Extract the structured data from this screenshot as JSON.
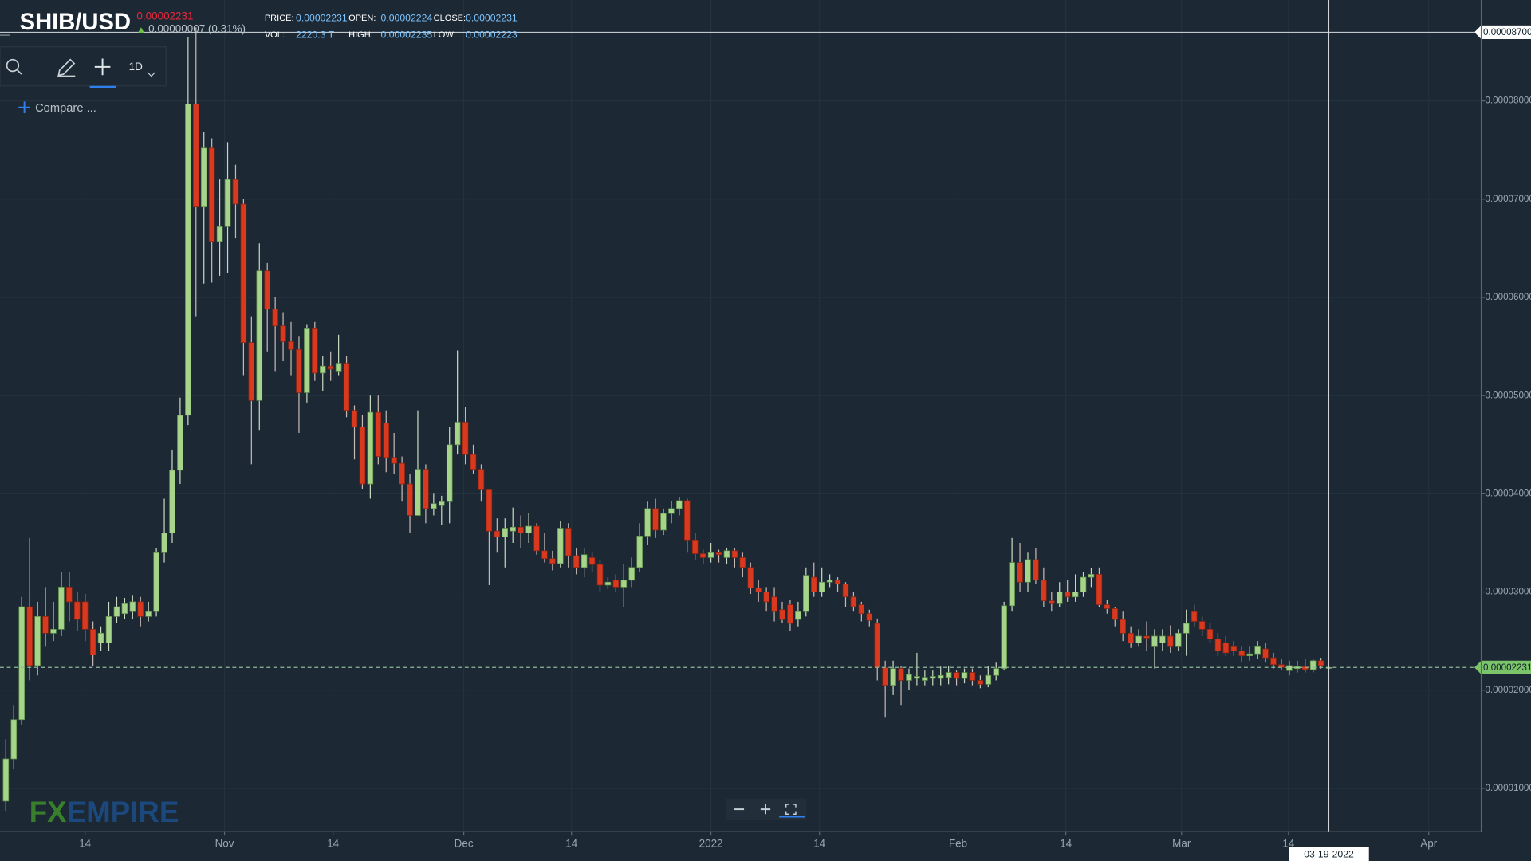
{
  "header": {
    "symbol": "SHIB/USD",
    "price": "0.00002231",
    "change": "0.00000007 (0.31%)",
    "fields": [
      {
        "label": "PRICE:",
        "value": "0.00002231"
      },
      {
        "label": "OPEN:",
        "value": "0.00002224"
      },
      {
        "label": "CLOSE:",
        "value": "0.00002231"
      },
      {
        "label": "VOL:",
        "value": "2220.3 T"
      },
      {
        "label": "HIGH:",
        "value": "0.00002235"
      },
      {
        "label": "LOW:",
        "value": "0.00002223"
      }
    ]
  },
  "toolbar": {
    "interval": "1D",
    "compare": "Compare ..."
  },
  "watermark": [
    "FX",
    "EMPIRE"
  ],
  "chart_data": {
    "type": "candlestick",
    "up_color": "#a6d48b",
    "down_color": "#d9391f",
    "grid": true,
    "ylim": [
      5.59e-06,
      9.028e-05
    ],
    "yticks": [
      {
        "value": 1e-05,
        "label": "0.00001000"
      },
      {
        "value": 2e-05,
        "label": "0.00002000"
      },
      {
        "value": 3e-05,
        "label": "0.00003000"
      },
      {
        "value": 4e-05,
        "label": "0.00004000"
      },
      {
        "value": 5e-05,
        "label": "0.00005000"
      },
      {
        "value": 6e-05,
        "label": "0.00006000"
      },
      {
        "value": 7e-05,
        "label": "0.00007000"
      },
      {
        "value": 8e-05,
        "label": "0.00008000"
      }
    ],
    "xticks": [
      {
        "value": 10,
        "label": "14"
      },
      {
        "value": 27.6,
        "label": "Nov"
      },
      {
        "value": 41.3,
        "label": "14"
      },
      {
        "value": 57.8,
        "label": "Dec"
      },
      {
        "value": 71.4,
        "label": "14"
      },
      {
        "value": 89,
        "label": "2022"
      },
      {
        "value": 102.7,
        "label": "14"
      },
      {
        "value": 120.2,
        "label": "Feb"
      },
      {
        "value": 133.8,
        "label": "14"
      },
      {
        "value": 148.4,
        "label": "Mar"
      },
      {
        "value": 161.9,
        "label": "14"
      },
      {
        "value": 179.6,
        "label": "Apr"
      }
    ],
    "last_price": 2.231e-05,
    "crosshair": {
      "category": 167,
      "value": 8.7e-05,
      "label": "0.00008700"
    },
    "categories": [
      null,
      null,
      null,
      null,
      null,
      null,
      null,
      null,
      null,
      null,
      null,
      null,
      null,
      null,
      null,
      null,
      null,
      null,
      null,
      null,
      null,
      null,
      null,
      null,
      null,
      null,
      null,
      null,
      null,
      null,
      null,
      null,
      null,
      null,
      null,
      null,
      null,
      null,
      null,
      null,
      null,
      null,
      null,
      null,
      null,
      null,
      null,
      null,
      null,
      null,
      null,
      null,
      null,
      null,
      null,
      null,
      null,
      null,
      null,
      null,
      null,
      null,
      null,
      null,
      null,
      null,
      null,
      null,
      null,
      null,
      null,
      null,
      null,
      null,
      null,
      null,
      null,
      null,
      null,
      null,
      null,
      null,
      null,
      null,
      null,
      null,
      null,
      null,
      null,
      null,
      null,
      null,
      null,
      null,
      null,
      null,
      null,
      null,
      null,
      null,
      null,
      null,
      null,
      null,
      null,
      null,
      null,
      null,
      null,
      null,
      null,
      null,
      null,
      null,
      null,
      null,
      null,
      null,
      null,
      null,
      null,
      null,
      null,
      null,
      null,
      null,
      null,
      null,
      null,
      null,
      null,
      null,
      null,
      null,
      null,
      null,
      null,
      null,
      null,
      null,
      null,
      null,
      null,
      null,
      null,
      null,
      null,
      null,
      null,
      null,
      null,
      null,
      null,
      null,
      null,
      null,
      null,
      null,
      null,
      null,
      null,
      null,
      null,
      null,
      null,
      null,
      null,
      "03-19-2022"
    ],
    "open": [
      8.7e-06,
      1.3e-05,
      1.7e-05,
      2.85e-05,
      2.25e-05,
      2.75e-05,
      2.58e-05,
      2.62e-05,
      3.05e-05,
      2.9e-05,
      2.9e-05,
      2.62e-05,
      2.48e-05,
      2.48e-05,
      2.75e-05,
      2.78e-05,
      2.8e-05,
      2.9e-05,
      2.75e-05,
      2.8e-05,
      3.4e-05,
      3.6e-05,
      4.24e-05,
      4.8e-05,
      7.97e-05,
      6.92e-05,
      7.52e-05,
      6.57e-05,
      6.72e-05,
      7.2e-05,
      6.95e-05,
      5.54e-05,
      4.95e-05,
      6.27e-05,
      5.88e-05,
      5.71e-05,
      5.55e-05,
      5.47e-05,
      5.03e-05,
      5.68e-05,
      5.23e-05,
      5.3e-05,
      5.25e-05,
      5.33e-05,
      4.85e-05,
      4.68e-05,
      4.1e-05,
      4.83e-05,
      4.72e-05,
      4.37e-05,
      4.31e-05,
      4.1e-05,
      3.78e-05,
      4.25e-05,
      3.85e-05,
      3.88e-05,
      3.92e-05,
      4.5e-05,
      4.73e-05,
      4.4e-05,
      4.25e-05,
      4.04e-05,
      3.62e-05,
      3.56e-05,
      3.62e-05,
      3.66e-05,
      3.6e-05,
      3.67e-05,
      3.42e-05,
      3.34e-05,
      3.29e-05,
      3.65e-05,
      3.37e-05,
      3.25e-05,
      3.35e-05,
      3.28e-05,
      3.07e-05,
      3.12e-05,
      3.05e-05,
      3.12e-05,
      3.25e-05,
      3.57e-05,
      3.85e-05,
      3.63e-05,
      3.8e-05,
      3.85e-05,
      3.93e-05,
      3.53e-05,
      3.39e-05,
      3.35e-05,
      3.4e-05,
      3.35e-05,
      3.42e-05,
      3.35e-05,
      3.25e-05,
      3.04e-05,
      3e-05,
      2.95e-05,
      2.82e-05,
      2.87e-05,
      2.72e-05,
      2.8e-05,
      3.15e-05,
      3e-05,
      3.1e-05,
      3.12e-05,
      3.08e-05,
      2.95e-05,
      2.87e-05,
      2.78e-05,
      2.68e-05,
      2.23e-05,
      2.05e-05,
      2.22e-05,
      2.1e-05,
      2.12e-05,
      2.1e-05,
      2.12e-05,
      2.12e-05,
      2.13e-05,
      2.18e-05,
      2.12e-05,
      2.18e-05,
      2.1e-05,
      2.06e-05,
      2.15e-05,
      2.22e-05,
      2.86e-05,
      3.3e-05,
      3.1e-05,
      3.33e-05,
      3.12e-05,
      2.91e-05,
      2.88e-05,
      3e-05,
      2.95e-05,
      3e-05,
      3.15e-05,
      3.18e-05,
      2.87e-05,
      2.83e-05,
      2.72e-05,
      2.58e-05,
      2.48e-05,
      2.55e-05,
      2.45e-05,
      2.48e-05,
      2.55e-05,
      2.45e-05,
      2.58e-05,
      2.8e-05,
      2.7e-05,
      2.62e-05,
      2.52e-05,
      2.48e-05,
      2.45e-05,
      2.4e-05,
      2.35e-05,
      2.37e-05,
      2.42e-05,
      2.33e-05,
      2.26e-05,
      2.2e-05,
      2.22e-05,
      2.24e-05,
      2.21e-05,
      2.3e-05,
      2.224e-05
    ],
    "high": [
      1.5e-05,
      1.85e-05,
      2.95e-05,
      3.55e-05,
      2.9e-05,
      3.05e-05,
      2.9e-05,
      3.2e-05,
      3.2e-05,
      3e-05,
      2.98e-05,
      2.7e-05,
      2.65e-05,
      2.9e-05,
      2.95e-05,
      2.94e-05,
      2.97e-05,
      2.95e-05,
      2.9e-05,
      3.45e-05,
      3.95e-05,
      4.45e-05,
      4.98e-05,
      8.65e-05,
      8.75e-05,
      7.68e-05,
      7.62e-05,
      7.2e-05,
      7.58e-05,
      7.35e-05,
      7e-05,
      5.8e-05,
      6.55e-05,
      6.35e-05,
      6e-05,
      5.85e-05,
      5.75e-05,
      5.6e-05,
      5.72e-05,
      5.75e-05,
      5.4e-05,
      5.45e-05,
      5.62e-05,
      5.4e-05,
      4.9e-05,
      4.8e-05,
      5e-05,
      5e-05,
      4.85e-05,
      4.62e-05,
      4.38e-05,
      4.2e-05,
      4.85e-05,
      4.3e-05,
      4e-05,
      3.98e-05,
      4.68e-05,
      5.46e-05,
      4.88e-05,
      4.5e-05,
      4.3e-05,
      4.05e-05,
      3.75e-05,
      3.75e-05,
      3.86e-05,
      3.78e-05,
      3.8e-05,
      3.7e-05,
      3.6e-05,
      3.42e-05,
      3.72e-05,
      3.7e-05,
      3.45e-05,
      3.45e-05,
      3.4e-05,
      3.32e-05,
      3.15e-05,
      3.18e-05,
      3.28e-05,
      3.35e-05,
      3.7e-05,
      3.92e-05,
      3.95e-05,
      3.85e-05,
      3.93e-05,
      3.97e-05,
      3.95e-05,
      3.6e-05,
      3.43e-05,
      3.5e-05,
      3.43e-05,
      3.45e-05,
      3.45e-05,
      3.4e-05,
      3.3e-05,
      3.12e-05,
      3.05e-05,
      3.05e-05,
      2.9e-05,
      2.92e-05,
      2.9e-05,
      3.25e-05,
      3.3e-05,
      3.25e-05,
      3.18e-05,
      3.15e-05,
      3.1e-05,
      3e-05,
      2.9e-05,
      2.82e-05,
      2.73e-05,
      2.3e-05,
      2.3e-05,
      2.25e-05,
      2.22e-05,
      2.38e-05,
      2.2e-05,
      2.2e-05,
      2.24e-05,
      2.25e-05,
      2.2e-05,
      2.22e-05,
      2.22e-05,
      2.15e-05,
      2.25e-05,
      2.28e-05,
      2.9e-05,
      3.55e-05,
      3.5e-05,
      3.4e-05,
      3.45e-05,
      3.25e-05,
      3e-05,
      3.1e-05,
      3.12e-05,
      3.18e-05,
      3.2e-05,
      3.24e-05,
      3.25e-05,
      2.92e-05,
      2.85e-05,
      2.8e-05,
      2.65e-05,
      2.62e-05,
      2.7e-05,
      2.62e-05,
      2.62e-05,
      2.66e-05,
      2.62e-05,
      2.82e-05,
      2.87e-05,
      2.75e-05,
      2.68e-05,
      2.58e-05,
      2.55e-05,
      2.5e-05,
      2.45e-05,
      2.45e-05,
      2.5e-05,
      2.48e-05,
      2.38e-05,
      2.32e-05,
      2.3e-05,
      2.3e-05,
      2.32e-05,
      2.32e-05,
      2.33e-05,
      2.235e-05
    ],
    "low": [
      7.7e-06,
      1.2e-05,
      1.65e-05,
      2.1e-05,
      2.15e-05,
      2.45e-05,
      2.5e-05,
      2.55e-05,
      2.7e-05,
      2.6e-05,
      2.5e-05,
      2.25e-05,
      2.4e-05,
      2.4e-05,
      2.68e-05,
      2.72e-05,
      2.72e-05,
      2.65e-05,
      2.7e-05,
      2.75e-05,
      3.3e-05,
      3.5e-05,
      4.1e-05,
      4.7e-05,
      5.8e-05,
      6.14e-05,
      6.15e-05,
      6.22e-05,
      6.25e-05,
      6.6e-05,
      5.2e-05,
      4.3e-05,
      4.65e-05,
      5.45e-05,
      5.25e-05,
      5.35e-05,
      5.2e-05,
      4.62e-05,
      4.93e-05,
      5.15e-05,
      5.05e-05,
      5.15e-05,
      5.2e-05,
      4.78e-05,
      4.35e-05,
      4.05e-05,
      3.95e-05,
      4.3e-05,
      4.22e-05,
      4.2e-05,
      3.92e-05,
      3.6e-05,
      3.78e-05,
      3.7e-05,
      3.78e-05,
      3.68e-05,
      3.7e-05,
      4.4e-05,
      4.3e-05,
      4.2e-05,
      3.92e-05,
      3.07e-05,
      3.4e-05,
      3.25e-05,
      3.5e-05,
      3.45e-05,
      3.5e-05,
      3.38e-05,
      3.3e-05,
      3.22e-05,
      3.25e-05,
      3.25e-05,
      3.18e-05,
      3.15e-05,
      3.2e-05,
      3e-05,
      3.03e-05,
      3e-05,
      2.85e-05,
      3.05e-05,
      3.2e-05,
      3.48e-05,
      3.55e-05,
      3.58e-05,
      3.7e-05,
      3.78e-05,
      3.4e-05,
      3.33e-05,
      3.28e-05,
      3.3e-05,
      3.3e-05,
      3.28e-05,
      3.25e-05,
      3.15e-05,
      2.98e-05,
      2.9e-05,
      2.8e-05,
      2.7e-05,
      2.68e-05,
      2.6e-05,
      2.65e-05,
      2.75e-05,
      2.95e-05,
      2.95e-05,
      3.05e-05,
      3e-05,
      2.85e-05,
      2.8e-05,
      2.7e-05,
      2.65e-05,
      2.1e-05,
      1.72e-05,
      1.95e-05,
      1.85e-05,
      2e-05,
      2.05e-05,
      2.05e-05,
      2.05e-05,
      2.05e-05,
      2.06e-05,
      2.05e-05,
      2.07e-05,
      2.05e-05,
      2.02e-05,
      2.03e-05,
      2.1e-05,
      2.2e-05,
      2.8e-05,
      3e-05,
      3e-05,
      3.08e-05,
      2.85e-05,
      2.8e-05,
      2.85e-05,
      2.9e-05,
      2.9e-05,
      2.95e-05,
      3.05e-05,
      2.85e-05,
      2.78e-05,
      2.65e-05,
      2.5e-05,
      2.43e-05,
      2.45e-05,
      2.4e-05,
      2.22e-05,
      2.4e-05,
      2.38e-05,
      2.4e-05,
      2.35e-05,
      2.65e-05,
      2.55e-05,
      2.48e-05,
      2.35e-05,
      2.35e-05,
      2.35e-05,
      2.28e-05,
      2.3e-05,
      2.32e-05,
      2.28e-05,
      2.22e-05,
      2.2e-05,
      2.15e-05,
      2.18e-05,
      2.18e-05,
      2.18e-05,
      2.22e-05,
      2.223e-05
    ],
    "close": [
      1.3e-05,
      1.7e-05,
      2.85e-05,
      2.25e-05,
      2.75e-05,
      2.58e-05,
      2.62e-05,
      3.05e-05,
      2.9e-05,
      2.72e-05,
      2.62e-05,
      2.36e-05,
      2.58e-05,
      2.75e-05,
      2.85e-05,
      2.88e-05,
      2.9e-05,
      2.75e-05,
      2.8e-05,
      3.4e-05,
      3.6e-05,
      4.24e-05,
      4.8e-05,
      7.97e-05,
      6.92e-05,
      7.52e-05,
      6.57e-05,
      6.72e-05,
      7.2e-05,
      6.95e-05,
      5.54e-05,
      4.95e-05,
      6.27e-05,
      5.88e-05,
      5.71e-05,
      5.55e-05,
      5.47e-05,
      5.03e-05,
      5.68e-05,
      5.23e-05,
      5.3e-05,
      5.27e-05,
      5.33e-05,
      4.85e-05,
      4.68e-05,
      4.1e-05,
      4.83e-05,
      4.38e-05,
      4.37e-05,
      4.31e-05,
      4.1e-05,
      3.78e-05,
      4.25e-05,
      3.85e-05,
      3.9e-05,
      3.92e-05,
      4.5e-05,
      4.73e-05,
      4.4e-05,
      4.25e-05,
      4.04e-05,
      3.62e-05,
      3.56e-05,
      3.65e-05,
      3.66e-05,
      3.6e-05,
      3.67e-05,
      3.42e-05,
      3.34e-05,
      3.29e-05,
      3.65e-05,
      3.37e-05,
      3.25e-05,
      3.38e-05,
      3.28e-05,
      3.07e-05,
      3.1e-05,
      3.05e-05,
      3.12e-05,
      3.25e-05,
      3.57e-05,
      3.85e-05,
      3.63e-05,
      3.8e-05,
      3.85e-05,
      3.93e-05,
      3.53e-05,
      3.39e-05,
      3.35e-05,
      3.4e-05,
      3.38e-05,
      3.42e-05,
      3.35e-05,
      3.25e-05,
      3.04e-05,
      3e-05,
      2.9e-05,
      2.8e-05,
      2.72e-05,
      2.68e-05,
      2.8e-05,
      3.17e-05,
      3e-05,
      3.1e-05,
      3.12e-05,
      3.08e-05,
      2.95e-05,
      2.85e-05,
      2.78e-05,
      2.71e-05,
      2.23e-05,
      2.05e-05,
      2.22e-05,
      2.1e-05,
      2.16e-05,
      2.14e-05,
      2.13e-05,
      2.14e-05,
      2.15e-05,
      2.18e-05,
      2.12e-05,
      2.18e-05,
      2.1e-05,
      2.06e-05,
      2.15e-05,
      2.22e-05,
      2.86e-05,
      3.3e-05,
      3.1e-05,
      3.33e-05,
      3.12e-05,
      2.91e-05,
      2.88e-05,
      3e-05,
      2.95e-05,
      3e-05,
      3.15e-05,
      3.18e-05,
      2.87e-05,
      2.83e-05,
      2.72e-05,
      2.58e-05,
      2.48e-05,
      2.55e-05,
      2.53e-05,
      2.55e-05,
      2.55e-05,
      2.45e-05,
      2.58e-05,
      2.68e-05,
      2.7e-05,
      2.62e-05,
      2.52e-05,
      2.4e-05,
      2.38e-05,
      2.4e-05,
      2.35e-05,
      2.37e-05,
      2.45e-05,
      2.33e-05,
      2.26e-05,
      2.23e-05,
      2.25e-05,
      2.24e-05,
      2.21e-05,
      2.3e-05,
      2.25e-05,
      2.231e-05
    ]
  }
}
